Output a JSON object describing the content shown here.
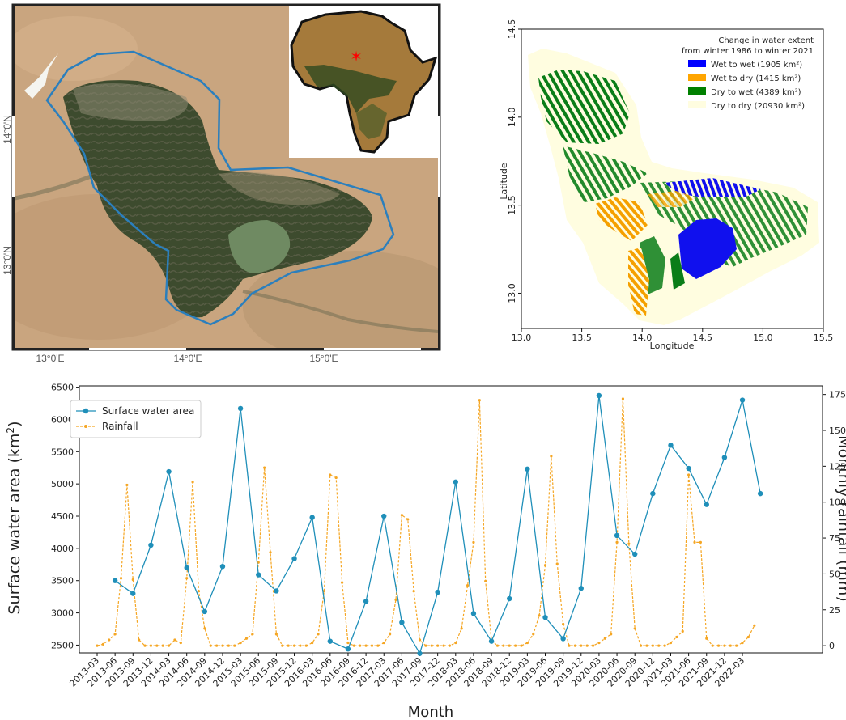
{
  "map_panel": {
    "lat_labels": [
      "14°0'N",
      "13°0'N"
    ],
    "lon_labels": [
      "13°0'E",
      "14°0'E",
      "15°0'E"
    ],
    "boundary_color": "#2b7fbd",
    "inset_marker_color": "#ff0000"
  },
  "change_map": {
    "legend_title_lines": [
      "Change in water extent",
      "from winter 1986 to winter 2021"
    ],
    "legend": [
      {
        "label": "Wet to wet (1905 km²)",
        "color": "#0000ff"
      },
      {
        "label": "Wet to dry (1415 km²)",
        "color": "#ffa500"
      },
      {
        "label": "Dry to wet (4389 km²)",
        "color": "#008000"
      },
      {
        "label": "Dry to dry (20930 km²)",
        "color": "#fffde0"
      }
    ],
    "xlabel": "Longitude",
    "ylabel": "Latitude",
    "xticks": [
      "13.0",
      "13.5",
      "14.0",
      "14.5",
      "15.0",
      "15.5"
    ],
    "yticks": [
      "13.0",
      "13.5",
      "14.0",
      "14.5"
    ],
    "xlim": [
      13.0,
      15.5
    ],
    "ylim": [
      12.8,
      14.5
    ]
  },
  "chart_data": {
    "type": "line",
    "xlabel": "Month",
    "ylabel": "Surface water area (km²)",
    "ylabel_base": "Surface water area (km",
    "ylabel_sup": "2",
    "ylabel_end": ")",
    "ylabel2": "Monthly rainfall (mm)",
    "ylim": [
      2380,
      6520
    ],
    "ylim2": [
      -5,
      181
    ],
    "yticks": [
      2500,
      3000,
      3500,
      4000,
      4500,
      5000,
      5500,
      6000,
      6500
    ],
    "yticks2": [
      0,
      25,
      50,
      75,
      100,
      125,
      150,
      175
    ],
    "xticks": [
      "2013-03",
      "2013-06",
      "2013-09",
      "2013-12",
      "2014-03",
      "2014-06",
      "2014-09",
      "2014-12",
      "2015-03",
      "2015-06",
      "2015-09",
      "2015-12",
      "2016-03",
      "2016-06",
      "2016-09",
      "2016-12",
      "2017-03",
      "2017-06",
      "2017-09",
      "2017-12",
      "2018-03",
      "2018-06",
      "2018-09",
      "2018-12",
      "2019-03",
      "2019-06",
      "2019-09",
      "2019-12",
      "2020-03",
      "2020-06",
      "2020-09",
      "2020-12",
      "2021-03",
      "2021-06",
      "2021-09",
      "2021-12",
      "2022-03"
    ],
    "legend_position": "upper-left",
    "series": [
      {
        "name": "Surface water area",
        "color": "#1f8fb9",
        "axis": "left",
        "points": [
          [
            "2013-06",
            3500
          ],
          [
            "2013-09",
            3300
          ],
          [
            "2013-12",
            4050
          ],
          [
            "2014-03",
            5190
          ],
          [
            "2014-06",
            3700
          ],
          [
            "2014-09",
            3020
          ],
          [
            "2014-12",
            3720
          ],
          [
            "2015-03",
            6170
          ],
          [
            "2015-06",
            3590
          ],
          [
            "2015-09",
            3340
          ],
          [
            "2015-12",
            3840
          ],
          [
            "2016-03",
            4480
          ],
          [
            "2016-06",
            2560
          ],
          [
            "2016-09",
            2440
          ],
          [
            "2016-12",
            3180
          ],
          [
            "2017-03",
            4500
          ],
          [
            "2017-06",
            2850
          ],
          [
            "2017-09",
            2370
          ],
          [
            "2017-12",
            3320
          ],
          [
            "2018-03",
            5030
          ],
          [
            "2018-06",
            2990
          ],
          [
            "2018-09",
            2560
          ],
          [
            "2018-12",
            3220
          ],
          [
            "2019-03",
            5230
          ],
          [
            "2019-06",
            2930
          ],
          [
            "2019-09",
            2600
          ],
          [
            "2019-12",
            3380
          ],
          [
            "2020-03",
            6370
          ],
          [
            "2020-06",
            4200
          ],
          [
            "2020-09",
            3910
          ],
          [
            "2020-12",
            4850
          ],
          [
            "2021-03",
            5600
          ],
          [
            "2021-06",
            5240
          ],
          [
            "2021-09",
            4680
          ],
          [
            "2021-12",
            5410
          ],
          [
            "2022-03",
            6300
          ],
          [
            "2022-06",
            4850
          ]
        ]
      },
      {
        "name": "Rainfall",
        "color": "#f5a623",
        "axis": "right",
        "start": "2013-03",
        "values": [
          0,
          1,
          4,
          8,
          47,
          112,
          46,
          4,
          0,
          0,
          0,
          0,
          0,
          4,
          2,
          47,
          114,
          38,
          12,
          0,
          0,
          0,
          0,
          0,
          2,
          5,
          8,
          58,
          124,
          65,
          8,
          0,
          0,
          0,
          0,
          0,
          2,
          8,
          38,
          119,
          117,
          44,
          2,
          0,
          0,
          0,
          0,
          0,
          2,
          8,
          32,
          91,
          88,
          38,
          4,
          0,
          0,
          0,
          0,
          0,
          2,
          12,
          42,
          72,
          171,
          45,
          4,
          0,
          0,
          0,
          0,
          0,
          2,
          8,
          21,
          56,
          132,
          57,
          15,
          0,
          0,
          0,
          0,
          0,
          2,
          5,
          8,
          72,
          172,
          71,
          12,
          0,
          0,
          0,
          0,
          0,
          2,
          6,
          10,
          119,
          72,
          72,
          5,
          0,
          0,
          0,
          0,
          0,
          2,
          6,
          14
        ]
      }
    ]
  }
}
